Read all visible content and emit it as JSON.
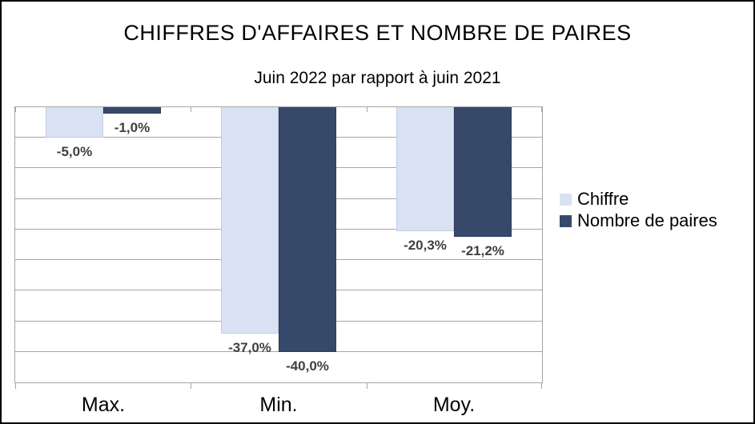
{
  "chart_data": {
    "type": "bar",
    "title": "CHIFFRES D'AFFAIRES ET NOMBRE DE PAIRES",
    "subtitle": "Juin 2022 par rapport à juin 2021",
    "categories": [
      "Max.",
      "Min.",
      "Moy."
    ],
    "series": [
      {
        "name": "Chiffre",
        "color": "#D9E2F3",
        "border_color": "#C2CEE8",
        "values": [
          -5.0,
          -37.0,
          -20.3
        ],
        "value_labels": [
          "-5,0%",
          "-37,0%",
          "-20,3%"
        ]
      },
      {
        "name": "Nombre de paires",
        "color": "#37496B",
        "border_color": "#2B3B58",
        "values": [
          -1.0,
          -40.0,
          -21.2
        ],
        "value_labels": [
          "-1,0%",
          "-40,0%",
          "-21,2%"
        ]
      }
    ],
    "xlabel": "",
    "ylabel": "",
    "ylim": [
      -45,
      0
    ],
    "gridline_step": 5,
    "grid": true,
    "y_axis_labels_visible": false,
    "legend_position": "right",
    "gridline_color": "#A6A6A6",
    "data_label_color": "#404040",
    "background_color": "#FFFFFF"
  }
}
